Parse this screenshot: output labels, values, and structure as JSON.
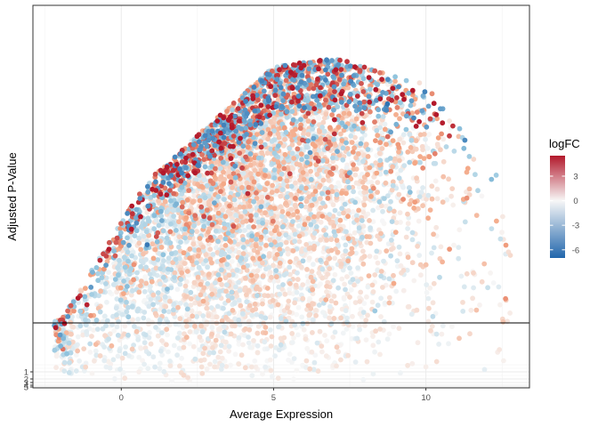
{
  "chart_data": {
    "type": "scatter",
    "title": "",
    "xlabel": "Average Expression",
    "ylabel": "Adjusted P-Value",
    "xlim": [
      -2.9,
      13.4
    ],
    "ylim": [
      5.3,
      0
    ],
    "x_ticks": [
      0,
      5,
      10
    ],
    "x_tick_labels": [
      "0",
      "5",
      "10"
    ],
    "y_ticks": [
      1,
      2,
      3,
      4,
      5
    ],
    "y_tick_labels": [
      "1",
      "2",
      "3",
      "4",
      "5"
    ],
    "y_scale": "log-like compressed (labels 1-5 crowded at bottom)",
    "reference_line_y": 0.97,
    "grid": true,
    "legend": {
      "title": "logFC",
      "placement": "right",
      "type": "colorbar",
      "ticks": [
        3,
        0,
        -3,
        -6
      ],
      "tick_labels": [
        "3",
        "0",
        "-3",
        "-6"
      ],
      "range": [
        -7,
        5.5
      ],
      "colors": {
        "low": "#2166ac",
        "mid": "#f7f7f7",
        "high": "#b2182b"
      }
    },
    "points": {
      "description_hidden": true,
      "count": 6000,
      "x_range": [
        -2.2,
        12.8
      ],
      "peak_x": 6.5
    }
  }
}
